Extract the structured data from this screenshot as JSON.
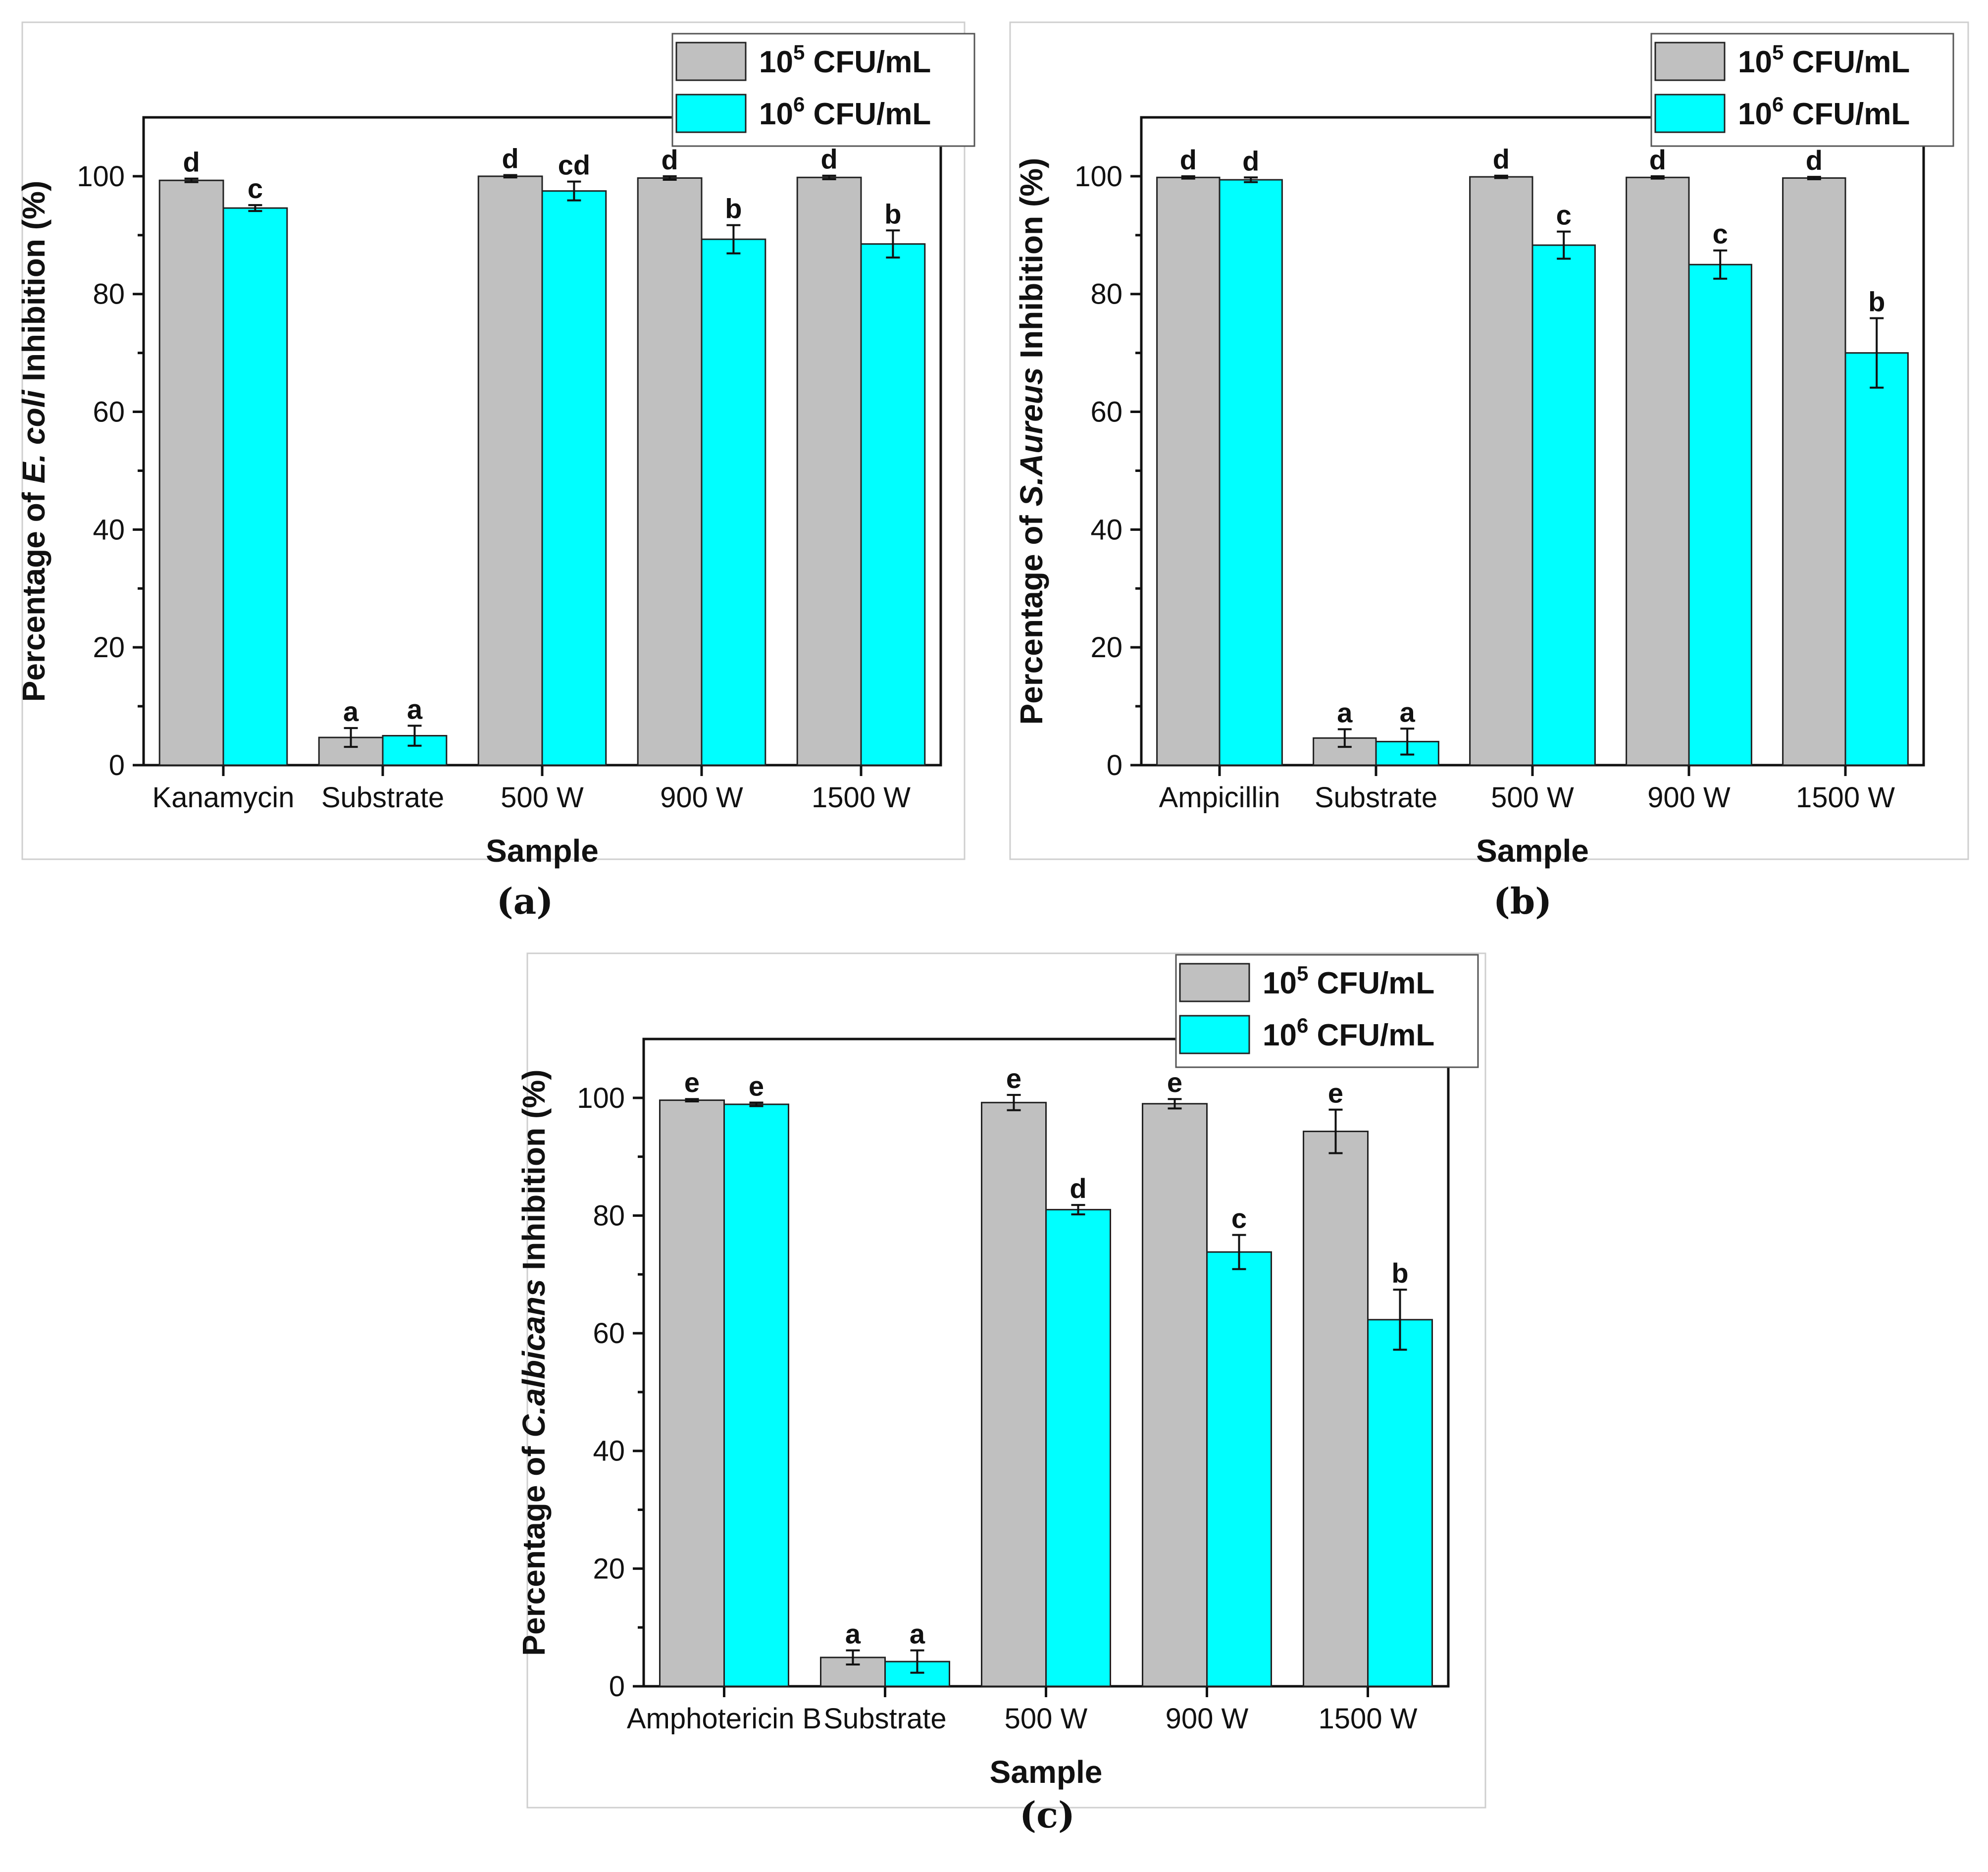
{
  "colors": {
    "series_1": "#c0c0c0",
    "series_2": "#00ffff"
  },
  "chart_data": [
    {
      "type": "bar",
      "caption": "(a)",
      "ylabel_prefix": "Percentage of ",
      "ylabel_italic": "E. coli",
      "ylabel_suffix": " Inhibition (%)",
      "xlabel": "Sample",
      "ylim": [
        0,
        110
      ],
      "yticks": [
        0,
        20,
        40,
        60,
        80,
        100
      ],
      "legend_position": "top-right",
      "categories": [
        "Kanamycin",
        "Substrate",
        "500 W",
        "900 W",
        "1500 W"
      ],
      "series": [
        {
          "name_base": "10",
          "name_exp": "5",
          "name_unit": " CFU/mL",
          "values": [
            99.3,
            4.7,
            100,
            99.7,
            99.8
          ],
          "errors": [
            0.3,
            1.6,
            0.2,
            0.3,
            0.3
          ],
          "letters": [
            "d",
            "a",
            "d",
            "d",
            "d"
          ]
        },
        {
          "name_base": "10",
          "name_exp": "6",
          "name_unit": " CFU/mL",
          "values": [
            94.6,
            5.0,
            97.5,
            89.3,
            88.5
          ],
          "errors": [
            0.5,
            1.7,
            1.6,
            2.4,
            2.3
          ],
          "letters": [
            "c",
            "a",
            "cd",
            "b",
            "b"
          ]
        }
      ]
    },
    {
      "type": "bar",
      "caption": "(b)",
      "ylabel_prefix": "Percentage of ",
      "ylabel_italic": "S.Aureus",
      "ylabel_suffix": " Inhibition (%)",
      "xlabel": "Sample",
      "ylim": [
        0,
        110
      ],
      "yticks": [
        0,
        20,
        40,
        60,
        80,
        100
      ],
      "legend_position": "top-right",
      "categories": [
        "Ampicillin",
        "Substrate",
        "500 W",
        "900 W",
        "1500 W"
      ],
      "series": [
        {
          "name_base": "10",
          "name_exp": "5",
          "name_unit": " CFU/mL",
          "values": [
            99.8,
            4.6,
            99.9,
            99.8,
            99.7
          ],
          "errors": [
            0.2,
            1.5,
            0.2,
            0.2,
            0.2
          ],
          "letters": [
            "d",
            "a",
            "d",
            "d",
            "d"
          ]
        },
        {
          "name_base": "10",
          "name_exp": "6",
          "name_unit": " CFU/mL",
          "values": [
            99.4,
            4.0,
            88.3,
            85.0,
            70.0
          ],
          "errors": [
            0.4,
            2.2,
            2.3,
            2.4,
            5.9
          ],
          "letters": [
            "d",
            "a",
            "c",
            "c",
            "b"
          ]
        }
      ]
    },
    {
      "type": "bar",
      "caption": "(c)",
      "ylabel_prefix": "Percentage of ",
      "ylabel_italic": "C.albicans",
      "ylabel_suffix": " Inhibition (%)",
      "xlabel": "Sample",
      "ylim": [
        0,
        110
      ],
      "yticks": [
        0,
        20,
        40,
        60,
        80,
        100
      ],
      "legend_position": "top-right",
      "categories": [
        "Amphotericin B",
        "Substrate",
        "500 W",
        "900 W",
        "1500 W"
      ],
      "series": [
        {
          "name_base": "10",
          "name_exp": "5",
          "name_unit": " CFU/mL",
          "values": [
            99.6,
            4.9,
            99.2,
            99.0,
            94.3
          ],
          "errors": [
            0.2,
            1.2,
            1.3,
            0.8,
            3.7
          ],
          "letters": [
            "e",
            "a",
            "e",
            "e",
            "e"
          ]
        },
        {
          "name_base": "10",
          "name_exp": "6",
          "name_unit": " CFU/mL",
          "values": [
            98.9,
            4.2,
            81.0,
            73.8,
            62.3
          ],
          "errors": [
            0.3,
            1.9,
            0.8,
            2.9,
            5.1
          ],
          "letters": [
            "e",
            "a",
            "d",
            "c",
            "b"
          ]
        }
      ]
    }
  ]
}
